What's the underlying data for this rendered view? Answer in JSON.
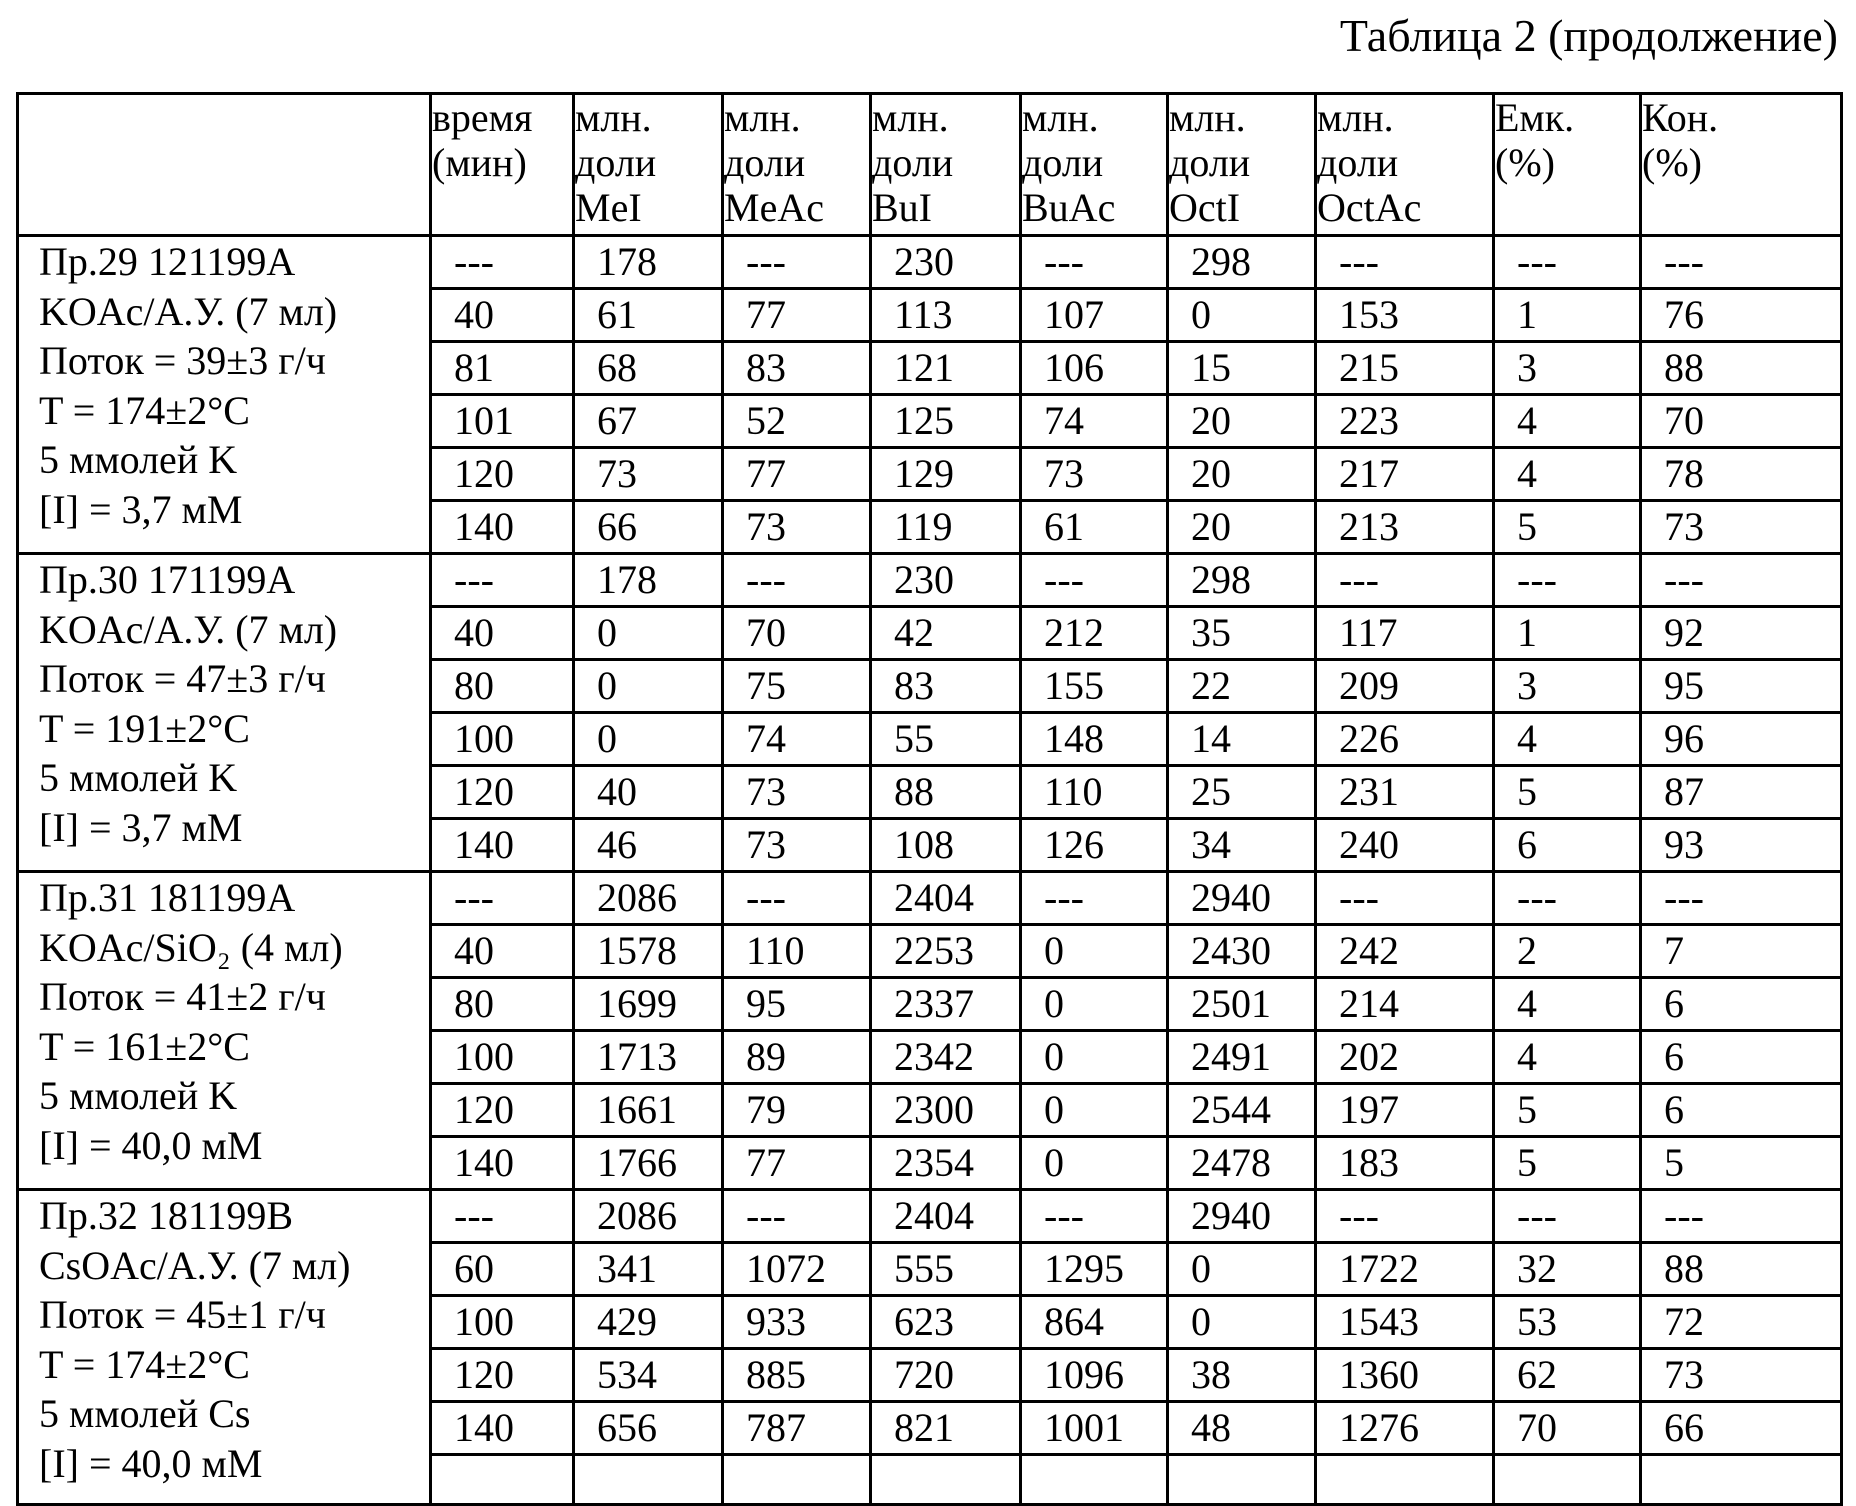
{
  "caption": "Таблица 2 (продолжение)",
  "header": [
    [
      "время",
      "(мин)"
    ],
    [
      "млн.",
      "доли",
      "MeI"
    ],
    [
      "млн.",
      "доли",
      "MeAc"
    ],
    [
      "млн.",
      "доли",
      "BuI"
    ],
    [
      "млн.",
      "доли",
      "BuAc"
    ],
    [
      "млн.",
      "доли",
      "OctI"
    ],
    [
      "млн.",
      "доли",
      "OctAc"
    ],
    [
      "Емк.",
      "(%)"
    ],
    [
      "Кон.",
      "(%)"
    ]
  ],
  "groups": [
    {
      "labels": [
        "Пр.29 121199A",
        "KOAc/А.У. (7 мл)",
        "Поток = 39±3 г/ч",
        "T = 174±2°C",
        "5 ммолей K",
        "[I] = 3,7 мМ"
      ],
      "rows": [
        [
          "---",
          "178",
          "---",
          "230",
          "---",
          "298",
          "---",
          "---",
          "---"
        ],
        [
          "40",
          "61",
          "77",
          "113",
          "107",
          "0",
          "153",
          "1",
          "76"
        ],
        [
          "81",
          "68",
          "83",
          "121",
          "106",
          "15",
          "215",
          "3",
          "88"
        ],
        [
          "101",
          "67",
          "52",
          "125",
          "74",
          "20",
          "223",
          "4",
          "70"
        ],
        [
          "120",
          "73",
          "77",
          "129",
          "73",
          "20",
          "217",
          "4",
          "78"
        ],
        [
          "140",
          "66",
          "73",
          "119",
          "61",
          "20",
          "213",
          "5",
          "73"
        ]
      ]
    },
    {
      "labels": [
        "Пр.30 171199A",
        "KOAc/А.У. (7 мл)",
        "Поток = 47±3 г/ч",
        "T = 191±2°C",
        "5 ммолей K",
        "[I] = 3,7 мМ"
      ],
      "rows": [
        [
          "---",
          "178",
          "---",
          "230",
          "---",
          "298",
          "---",
          "---",
          "---"
        ],
        [
          "40",
          "0",
          "70",
          "42",
          "212",
          "35",
          "117",
          "1",
          "92"
        ],
        [
          "80",
          "0",
          "75",
          "83",
          "155",
          "22",
          "209",
          "3",
          "95"
        ],
        [
          "100",
          "0",
          "74",
          "55",
          "148",
          "14",
          "226",
          "4",
          "96"
        ],
        [
          "120",
          "40",
          "73",
          "88",
          "110",
          "25",
          "231",
          "5",
          "87"
        ],
        [
          "140",
          "46",
          "73",
          "108",
          "126",
          "34",
          "240",
          "6",
          "93"
        ]
      ]
    },
    {
      "labels": [
        "Пр.31 181199A",
        "KOAc/SiO₂ (4 мл)",
        "Поток = 41±2 г/ч",
        "T = 161±2°C",
        "5 ммолей K",
        "[I] = 40,0 мМ"
      ],
      "rows": [
        [
          "---",
          "2086",
          "---",
          "2404",
          "---",
          "2940",
          "---",
          "---",
          "---"
        ],
        [
          "40",
          "1578",
          "110",
          "2253",
          "0",
          "2430",
          "242",
          "2",
          "7"
        ],
        [
          "80",
          "1699",
          "95",
          "2337",
          "0",
          "2501",
          "214",
          "4",
          "6"
        ],
        [
          "100",
          "1713",
          "89",
          "2342",
          "0",
          "2491",
          "202",
          "4",
          "6"
        ],
        [
          "120",
          "1661",
          "79",
          "2300",
          "0",
          "2544",
          "197",
          "5",
          "6"
        ],
        [
          "140",
          "1766",
          "77",
          "2354",
          "0",
          "2478",
          "183",
          "5",
          "5"
        ]
      ]
    },
    {
      "labels": [
        "Пр.32 181199B",
        "CsOAc/А.У. (7 мл)",
        "Поток = 45±1 г/ч",
        "T = 174±2°C",
        "5 ммолей Cs",
        "[I] = 40,0 мМ"
      ],
      "rows": [
        [
          "---",
          "2086",
          "---",
          "2404",
          "---",
          "2940",
          "---",
          "---",
          "---"
        ],
        [
          "60",
          "341",
          "1072",
          "555",
          "1295",
          "0",
          "1722",
          "32",
          "88"
        ],
        [
          "100",
          "429",
          "933",
          "623",
          "864",
          "0",
          "1543",
          "53",
          "72"
        ],
        [
          "120",
          "534",
          "885",
          "720",
          "1096",
          "38",
          "1360",
          "62",
          "73"
        ],
        [
          "140",
          "656",
          "787",
          "821",
          "1001",
          "48",
          "1276",
          "70",
          "66"
        ],
        [
          "",
          "",
          "",
          "",
          "",
          "",
          "",
          "",
          ""
        ]
      ]
    }
  ]
}
